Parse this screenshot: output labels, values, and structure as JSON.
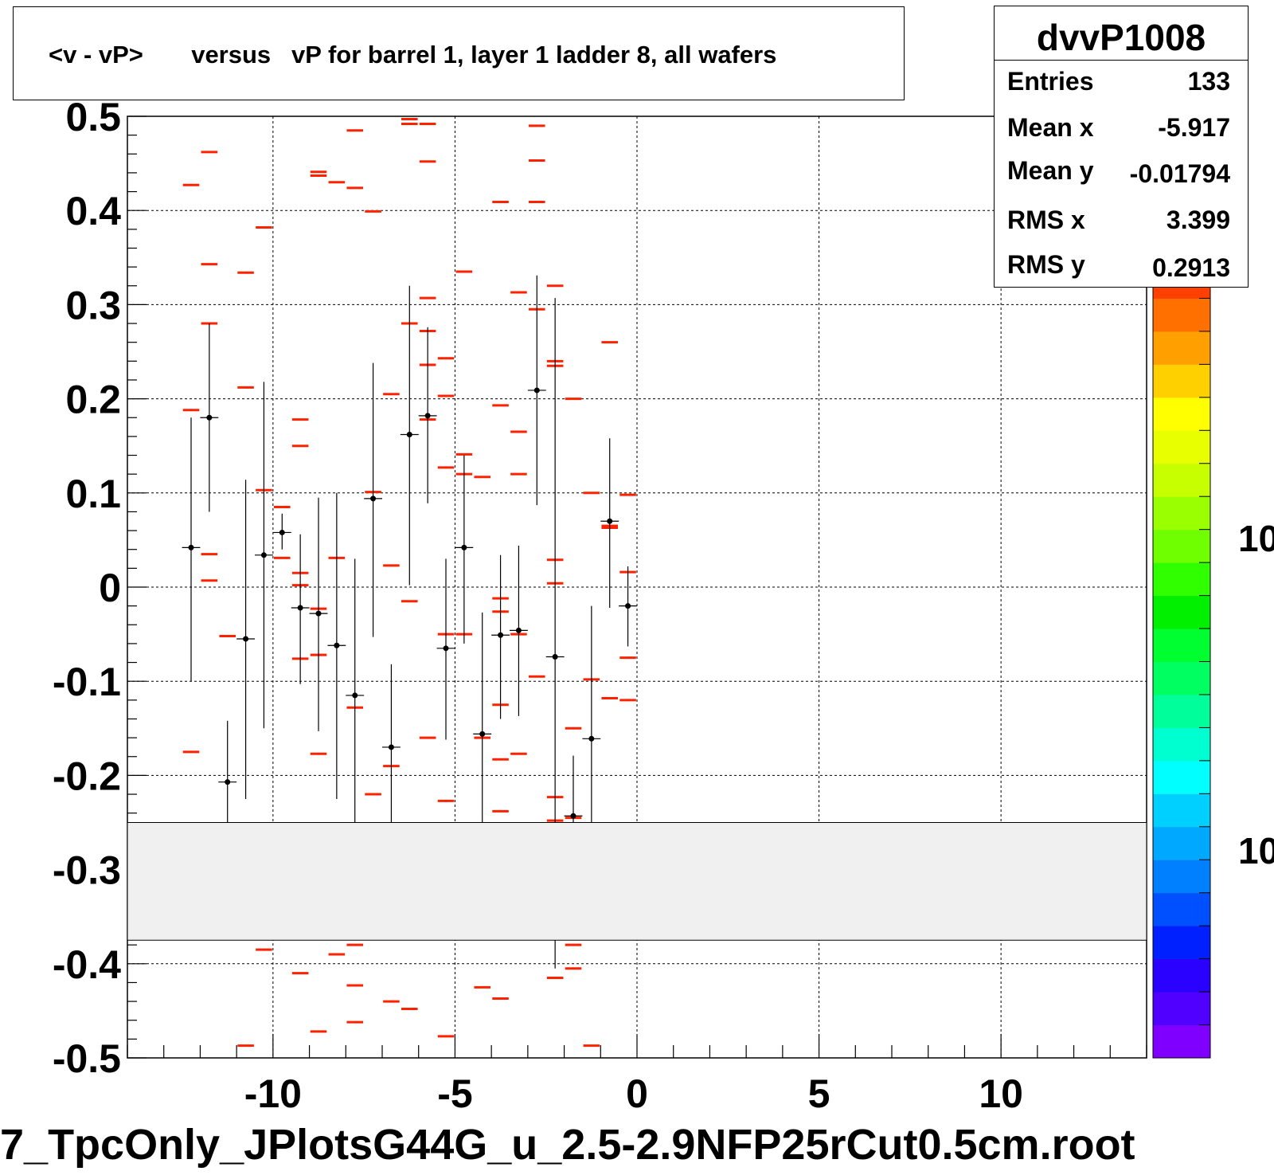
{
  "title": {
    "text": "<v - vP>       versus   vP for barrel 1, layer 1 ladder 8, all wafers"
  },
  "stats": {
    "name": "dvvP1008",
    "rows": [
      {
        "label": "Entries",
        "value": "133"
      },
      {
        "label": "Mean x",
        "value": "-5.917"
      },
      {
        "label": "Mean y",
        "value": "-0.01794"
      },
      {
        "label": "RMS x",
        "value": "3.399"
      },
      {
        "label": "RMS y",
        "value": "0.2913"
      }
    ]
  },
  "x_axis_title": "7_TpcOnly_JPlotsG44G_u_2.5-2.9NFP25rCut0.5cm.root",
  "palette_labels": [
    "10",
    "10"
  ],
  "colors": {
    "red_bin": "#ff2200",
    "points": "#000000",
    "frame_fill": "#f0f0f0",
    "palette": [
      "#7f00ff",
      "#5000ff",
      "#2a00ff",
      "#0020ff",
      "#0050ff",
      "#0080ff",
      "#00a8ff",
      "#00d0ff",
      "#00ffff",
      "#00ffd0",
      "#00ff9a",
      "#00ff60",
      "#00ff30",
      "#00f000",
      "#30ff00",
      "#70ff00",
      "#9aff00",
      "#c8ff00",
      "#e8ff00",
      "#ffff00",
      "#ffd000",
      "#ffa000",
      "#ff7000",
      "#ff4000"
    ]
  },
  "chart_data": {
    "type": "scatter",
    "title": "<v - vP>       versus   vP for barrel 1, layer 1 ladder 8, all wafers",
    "xlabel": "7_TpcOnly_JPlotsG44G_u_2.5-2.9NFP25rCut0.5cm.root",
    "ylabel": "",
    "xlim": [
      -14,
      14
    ],
    "ylim": [
      -0.5,
      0.5
    ],
    "x_ticks": [
      -10,
      -5,
      0,
      5,
      10
    ],
    "y_ticks": [
      0.5,
      0.4,
      0.3,
      0.2,
      0.1,
      0,
      -0.1,
      -0.2,
      -0.3,
      -0.4,
      -0.5
    ],
    "grid": true,
    "legend": "stats box top-right",
    "masked_y_range": [
      -0.375,
      -0.25
    ],
    "red_bins": [
      [
        -12.25,
        0.427
      ],
      [
        -12.25,
        0.188
      ],
      [
        -12.25,
        -0.175
      ],
      [
        -11.75,
        0.462
      ],
      [
        -11.75,
        0.343
      ],
      [
        -11.75,
        0.28
      ],
      [
        -11.75,
        0.035
      ],
      [
        -11.75,
        0.007
      ],
      [
        -11.25,
        -0.052
      ],
      [
        -10.75,
        0.212
      ],
      [
        -10.75,
        0.334
      ],
      [
        -10.75,
        -0.487
      ],
      [
        -10.25,
        0.382
      ],
      [
        -10.25,
        0.103
      ],
      [
        -10.25,
        -0.385
      ],
      [
        -9.75,
        0.085
      ],
      [
        -9.75,
        0.031
      ],
      [
        -9.25,
        0.178
      ],
      [
        -9.25,
        0.15
      ],
      [
        -9.25,
        0.015
      ],
      [
        -9.25,
        0.002
      ],
      [
        -9.25,
        -0.076
      ],
      [
        -9.25,
        -0.41
      ],
      [
        -8.75,
        0.441
      ],
      [
        -8.75,
        0.437
      ],
      [
        -8.75,
        -0.023
      ],
      [
        -8.75,
        -0.072
      ],
      [
        -8.75,
        -0.177
      ],
      [
        -8.75,
        -0.472
      ],
      [
        -8.25,
        0.43
      ],
      [
        -8.25,
        0.031
      ],
      [
        -8.25,
        -0.39
      ],
      [
        -7.75,
        0.485
      ],
      [
        -7.75,
        0.424
      ],
      [
        -7.75,
        -0.128
      ],
      [
        -7.75,
        -0.38
      ],
      [
        -7.75,
        -0.423
      ],
      [
        -7.75,
        -0.462
      ],
      [
        -7.25,
        0.399
      ],
      [
        -7.25,
        0.101
      ],
      [
        -7.25,
        -0.22
      ],
      [
        -6.75,
        0.205
      ],
      [
        -6.75,
        0.023
      ],
      [
        -6.75,
        -0.19
      ],
      [
        -6.75,
        -0.44
      ],
      [
        -6.25,
        0.497
      ],
      [
        -6.25,
        0.492
      ],
      [
        -6.25,
        0.28
      ],
      [
        -6.25,
        -0.015
      ],
      [
        -6.25,
        -0.448
      ],
      [
        -5.75,
        0.492
      ],
      [
        -5.75,
        0.452
      ],
      [
        -5.75,
        0.307
      ],
      [
        -5.75,
        0.272
      ],
      [
        -5.75,
        0.236
      ],
      [
        -5.75,
        0.178
      ],
      [
        -5.75,
        -0.16
      ],
      [
        -5.25,
        0.243
      ],
      [
        -5.25,
        0.203
      ],
      [
        -5.25,
        0.127
      ],
      [
        -5.25,
        -0.05
      ],
      [
        -5.25,
        -0.227
      ],
      [
        -5.25,
        -0.477
      ],
      [
        -4.75,
        0.335
      ],
      [
        -4.75,
        0.141
      ],
      [
        -4.75,
        0.12
      ],
      [
        -4.75,
        -0.05
      ],
      [
        -4.25,
        0.117
      ],
      [
        -4.25,
        -0.16
      ],
      [
        -4.25,
        -0.425
      ],
      [
        -3.75,
        0.409
      ],
      [
        -3.75,
        0.193
      ],
      [
        -3.75,
        -0.012
      ],
      [
        -3.75,
        -0.026
      ],
      [
        -3.75,
        -0.125
      ],
      [
        -3.75,
        -0.183
      ],
      [
        -3.75,
        -0.238
      ],
      [
        -3.75,
        -0.437
      ],
      [
        -3.25,
        0.313
      ],
      [
        -3.25,
        0.165
      ],
      [
        -3.25,
        0.12
      ],
      [
        -3.25,
        -0.05
      ],
      [
        -3.25,
        -0.177
      ],
      [
        -2.75,
        0.49
      ],
      [
        -2.75,
        0.453
      ],
      [
        -2.75,
        0.409
      ],
      [
        -2.75,
        0.295
      ],
      [
        -2.75,
        -0.095
      ],
      [
        -2.25,
        0.32
      ],
      [
        -2.25,
        0.24
      ],
      [
        -2.25,
        0.235
      ],
      [
        -2.25,
        0.029
      ],
      [
        -2.25,
        0.004
      ],
      [
        -2.25,
        -0.223
      ],
      [
        -2.25,
        -0.248
      ],
      [
        -2.25,
        -0.415
      ],
      [
        -1.75,
        0.2
      ],
      [
        -1.75,
        -0.15
      ],
      [
        -1.75,
        -0.245
      ],
      [
        -1.75,
        -0.38
      ],
      [
        -1.75,
        -0.405
      ],
      [
        -1.25,
        0.1
      ],
      [
        -1.25,
        -0.098
      ],
      [
        -1.25,
        -0.487
      ],
      [
        -0.75,
        0.26
      ],
      [
        -0.75,
        0.065
      ],
      [
        -0.75,
        0.063
      ],
      [
        -0.75,
        -0.118
      ],
      [
        -0.25,
        0.098
      ],
      [
        -0.25,
        0.016
      ],
      [
        -0.25,
        -0.075
      ],
      [
        -0.25,
        -0.12
      ]
    ],
    "points": [
      {
        "x": -12.25,
        "y": 0.042,
        "lo": -0.1,
        "hi": 0.18
      },
      {
        "x": -11.75,
        "y": 0.18,
        "lo": 0.08,
        "hi": 0.28
      },
      {
        "x": -11.25,
        "y": -0.207,
        "lo": -0.25,
        "hi": -0.142
      },
      {
        "x": -10.75,
        "y": -0.055,
        "lo": -0.225,
        "hi": 0.114
      },
      {
        "x": -10.25,
        "y": 0.034,
        "lo": -0.15,
        "hi": 0.218
      },
      {
        "x": -9.75,
        "y": 0.058,
        "lo": 0.04,
        "hi": 0.078
      },
      {
        "x": -9.25,
        "y": -0.022,
        "lo": -0.103,
        "hi": 0.056
      },
      {
        "x": -8.75,
        "y": -0.028,
        "lo": -0.153,
        "hi": 0.095
      },
      {
        "x": -8.25,
        "y": -0.062,
        "lo": -0.225,
        "hi": 0.1
      },
      {
        "x": -7.75,
        "y": -0.115,
        "lo": -0.25,
        "hi": 0.03
      },
      {
        "x": -7.25,
        "y": 0.094,
        "lo": -0.053,
        "hi": 0.238
      },
      {
        "x": -6.75,
        "y": -0.17,
        "lo": -0.25,
        "hi": -0.082
      },
      {
        "x": -6.25,
        "y": 0.162,
        "lo": 0.002,
        "hi": 0.32
      },
      {
        "x": -5.75,
        "y": 0.182,
        "lo": 0.089,
        "hi": 0.276
      },
      {
        "x": -5.25,
        "y": -0.065,
        "lo": -0.162,
        "hi": 0.03
      },
      {
        "x": -4.75,
        "y": 0.042,
        "lo": -0.06,
        "hi": 0.14
      },
      {
        "x": -4.25,
        "y": -0.156,
        "lo": -0.25,
        "hi": -0.027
      },
      {
        "x": -3.75,
        "y": -0.051,
        "lo": -0.14,
        "hi": 0.034
      },
      {
        "x": -3.25,
        "y": -0.046,
        "lo": -0.137,
        "hi": 0.044
      },
      {
        "x": -2.75,
        "y": 0.209,
        "lo": 0.087,
        "hi": 0.331
      },
      {
        "x": -2.25,
        "y": -0.074,
        "lo": -0.25,
        "hi": 0.307
      },
      {
        "x": -1.75,
        "y": -0.243,
        "lo": -0.25,
        "hi": -0.179
      },
      {
        "x": -1.25,
        "y": -0.161,
        "lo": -0.25,
        "hi": -0.02
      },
      {
        "x": -0.75,
        "y": 0.07,
        "lo": -0.022,
        "hi": 0.158
      },
      {
        "x": -0.25,
        "y": -0.02,
        "lo": -0.063,
        "hi": 0.022
      }
    ],
    "lower_stub": {
      "x": -2.25,
      "lo": -0.405,
      "hi": -0.375
    }
  }
}
